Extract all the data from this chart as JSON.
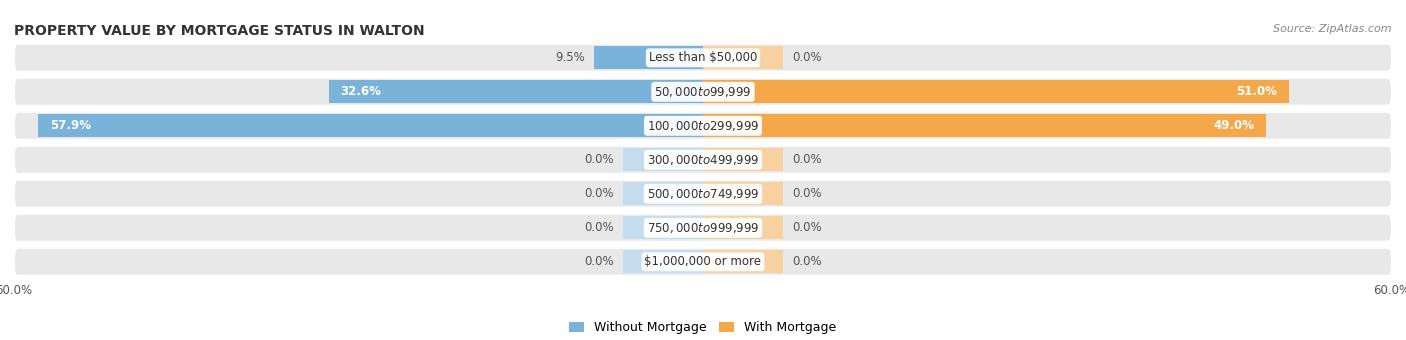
{
  "title": "PROPERTY VALUE BY MORTGAGE STATUS IN WALTON",
  "source": "Source: ZipAtlas.com",
  "categories": [
    "Less than $50,000",
    "$50,000 to $99,999",
    "$100,000 to $299,999",
    "$300,000 to $499,999",
    "$500,000 to $749,999",
    "$750,000 to $999,999",
    "$1,000,000 or more"
  ],
  "without_mortgage": [
    9.5,
    32.6,
    57.9,
    0.0,
    0.0,
    0.0,
    0.0
  ],
  "with_mortgage": [
    0.0,
    51.0,
    49.0,
    0.0,
    0.0,
    0.0,
    0.0
  ],
  "xlim": 60.0,
  "color_without": "#7ab3d9",
  "color_with": "#f5a84a",
  "color_without_light": "#c5dcee",
  "color_with_light": "#f7d1a0",
  "bar_bg_color": "#e8e8e8",
  "title_fontsize": 10,
  "source_fontsize": 8,
  "label_fontsize": 8.5,
  "tick_fontsize": 8.5,
  "legend_fontsize": 9,
  "zero_bar_width": 7.0
}
